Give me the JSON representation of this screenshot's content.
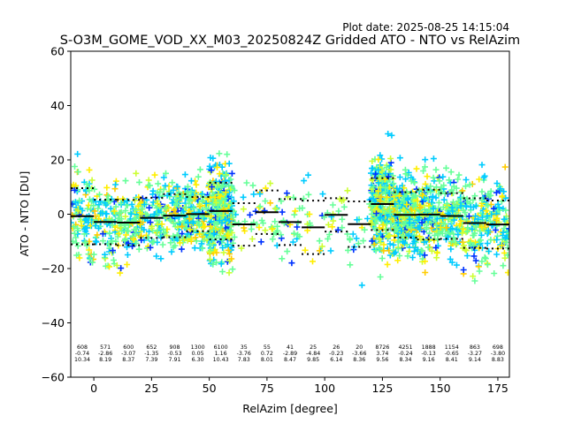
{
  "plot_date": "Plot date: 2025-08-25 14:15:04",
  "chart_data": {
    "type": "scatter",
    "title": "S-O3M_GOME_VOD_XX_M03_20250824Z Gridded ATO - NTO vs RelAzim",
    "xlabel": "RelAzim [degree]",
    "ylabel": "ATO - NTO [DU]",
    "xlim": [
      -10,
      180
    ],
    "ylim": [
      -60,
      60
    ],
    "xticks": [
      0,
      25,
      50,
      75,
      100,
      125,
      150,
      175
    ],
    "yticks": [
      -60,
      -40,
      -20,
      0,
      20,
      40,
      60
    ],
    "grid": false,
    "marker": "+",
    "colormap": [
      "#0033ff",
      "#00ccff",
      "#66ff99",
      "#ccff33",
      "#ffee00",
      "#ffcc00"
    ],
    "bins": [
      {
        "x": -5,
        "count": "608",
        "mean": "-0.74",
        "std": "10.34"
      },
      {
        "x": 5,
        "count": "571",
        "mean": "-2.86",
        "std": "8.19"
      },
      {
        "x": 15,
        "count": "600",
        "mean": "-3.07",
        "std": "8.37"
      },
      {
        "x": 25,
        "count": "652",
        "mean": "-1.35",
        "std": "7.39"
      },
      {
        "x": 35,
        "count": "908",
        "mean": "-0.53",
        "std": "7.91"
      },
      {
        "x": 45,
        "count": "1300",
        "mean": "0.05",
        "std": "6.30"
      },
      {
        "x": 55,
        "count": "6100",
        "mean": "1.16",
        "std": "10.43"
      },
      {
        "x": 65,
        "count": "35",
        "mean": "-3.76",
        "std": "7.83"
      },
      {
        "x": 75,
        "count": "55",
        "mean": "0.72",
        "std": "8.01"
      },
      {
        "x": 85,
        "count": "41",
        "mean": "-2.89",
        "std": "8.47"
      },
      {
        "x": 95,
        "count": "25",
        "mean": "-4.84",
        "std": "9.85"
      },
      {
        "x": 105,
        "count": "26",
        "mean": "-0.23",
        "std": "6.14"
      },
      {
        "x": 115,
        "count": "20",
        "mean": "-3.66",
        "std": "8.36"
      },
      {
        "x": 125,
        "count": "8726",
        "mean": "3.74",
        "std": "9.56"
      },
      {
        "x": 135,
        "count": "4251",
        "mean": "-0.24",
        "std": "8.34"
      },
      {
        "x": 145,
        "count": "1888",
        "mean": "-0.13",
        "std": "9.16"
      },
      {
        "x": 155,
        "count": "1154",
        "mean": "-0.65",
        "std": "8.41"
      },
      {
        "x": 165,
        "count": "863",
        "mean": "-3.27",
        "std": "9.14"
      },
      {
        "x": 175,
        "count": "698",
        "mean": "-3.80",
        "std": "8.83"
      }
    ]
  }
}
